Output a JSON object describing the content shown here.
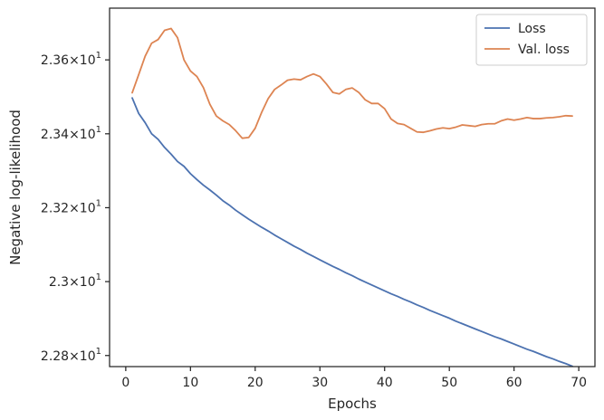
{
  "chart_data": {
    "type": "line",
    "xlabel": "Epochs",
    "ylabel": "Negative log-likelihood",
    "xlim": [
      -2.5,
      72.5
    ],
    "ylim": [
      22.77,
      23.74
    ],
    "x_ticks": [
      0,
      10,
      20,
      30,
      40,
      50,
      60,
      70
    ],
    "x_tick_labels": [
      "0",
      "10",
      "20",
      "30",
      "40",
      "50",
      "60",
      "70"
    ],
    "y_ticks": [
      22.8,
      23.0,
      23.2,
      23.4,
      23.6
    ],
    "y_tick_labels": [
      {
        "base": "2.28",
        "exp": "1"
      },
      {
        "base": "2.3",
        "exp": "1"
      },
      {
        "base": "2.32",
        "exp": "1"
      },
      {
        "base": "2.34",
        "exp": "1"
      },
      {
        "base": "2.36",
        "exp": "1"
      }
    ],
    "y_tick_times": "×10",
    "grid": false,
    "legend_position": "top-right",
    "x": [
      1,
      2,
      3,
      4,
      5,
      6,
      7,
      8,
      9,
      10,
      11,
      12,
      13,
      14,
      15,
      16,
      17,
      18,
      19,
      20,
      21,
      22,
      23,
      24,
      25,
      26,
      27,
      28,
      29,
      30,
      31,
      32,
      33,
      34,
      35,
      36,
      37,
      38,
      39,
      40,
      41,
      42,
      43,
      44,
      45,
      46,
      47,
      48,
      49,
      50,
      51,
      52,
      53,
      54,
      55,
      56,
      57,
      58,
      59,
      60,
      61,
      62,
      63,
      64,
      65,
      66,
      67,
      68,
      69
    ],
    "series": [
      {
        "name": "Loss",
        "color": "#4c72b0",
        "values": [
          23.497,
          23.455,
          23.43,
          23.4,
          23.385,
          23.363,
          23.345,
          23.325,
          23.312,
          23.292,
          23.276,
          23.261,
          23.248,
          23.234,
          23.219,
          23.207,
          23.193,
          23.181,
          23.169,
          23.158,
          23.147,
          23.137,
          23.126,
          23.116,
          23.106,
          23.096,
          23.087,
          23.077,
          23.068,
          23.059,
          23.05,
          23.041,
          23.033,
          23.024,
          23.016,
          23.007,
          22.999,
          22.991,
          22.983,
          22.975,
          22.967,
          22.96,
          22.952,
          22.945,
          22.937,
          22.93,
          22.922,
          22.915,
          22.908,
          22.901,
          22.893,
          22.886,
          22.879,
          22.872,
          22.865,
          22.858,
          22.851,
          22.845,
          22.838,
          22.831,
          22.824,
          22.817,
          22.811,
          22.804,
          22.797,
          22.791,
          22.784,
          22.778,
          22.771
        ]
      },
      {
        "name": "Val. loss",
        "color": "#dd8452",
        "values": [
          23.511,
          23.56,
          23.61,
          23.645,
          23.655,
          23.68,
          23.685,
          23.66,
          23.6,
          23.57,
          23.555,
          23.525,
          23.48,
          23.448,
          23.435,
          23.425,
          23.408,
          23.388,
          23.39,
          23.415,
          23.458,
          23.495,
          23.52,
          23.532,
          23.545,
          23.548,
          23.546,
          23.555,
          23.562,
          23.555,
          23.535,
          23.512,
          23.508,
          23.52,
          23.524,
          23.512,
          23.492,
          23.482,
          23.482,
          23.468,
          23.44,
          23.428,
          23.425,
          23.415,
          23.405,
          23.404,
          23.408,
          23.413,
          23.416,
          23.414,
          23.418,
          23.424,
          23.422,
          23.42,
          23.425,
          23.427,
          23.427,
          23.435,
          23.44,
          23.437,
          23.44,
          23.444,
          23.441,
          23.441,
          23.443,
          23.444,
          23.446,
          23.449,
          23.448
        ]
      }
    ]
  }
}
